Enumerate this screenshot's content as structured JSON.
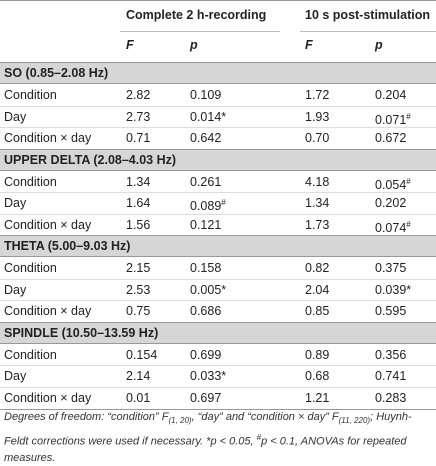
{
  "header": {
    "group1": "Complete 2 h-recording",
    "group2": "10 s post-stimulation",
    "columns": [
      "F",
      "p",
      "F",
      "p"
    ]
  },
  "sections": [
    {
      "title": "SO (0.85–2.08 Hz)",
      "rows": [
        [
          "Condition",
          "2.82",
          "0.109",
          "1.72",
          "0.204"
        ],
        [
          "Day",
          "2.73",
          "0.014*",
          "1.93",
          {
            "text": "0.071",
            "sup": "#"
          }
        ],
        [
          "Condition × day",
          "0.71",
          "0.642",
          "0.70",
          "0.672"
        ]
      ]
    },
    {
      "title": "UPPER DELTA (2.08–4.03 Hz)",
      "rows": [
        [
          "Condition",
          "1.34",
          "0.261",
          "4.18",
          {
            "text": "0.054",
            "sup": "#"
          }
        ],
        [
          "Day",
          "1.64",
          {
            "text": "0.089",
            "sup": "#"
          },
          "1.34",
          "0.202"
        ],
        [
          "Condition × day",
          "1.56",
          "0.121",
          "1.73",
          {
            "text": "0.074",
            "sup": "#"
          }
        ]
      ]
    },
    {
      "title": "THETA (5.00–9.03 Hz)",
      "rows": [
        [
          "Condition",
          "2.15",
          "0.158",
          "0.82",
          "0.375"
        ],
        [
          "Day",
          "2.53",
          "0.005*",
          "2.04",
          "0.039*"
        ],
        [
          "Condition × day",
          "0.75",
          "0.686",
          "0.85",
          "0.595"
        ]
      ]
    },
    {
      "title": "SPINDLE (10.50–13.59 Hz)",
      "rows": [
        [
          "Condition",
          "0.154",
          "0.699",
          "0.89",
          "0.356"
        ],
        [
          "Day",
          "2.14",
          "0.033*",
          "0.68",
          "0.741"
        ],
        [
          "Condition × day",
          "0.01",
          "0.697",
          "1.21",
          "0.283"
        ]
      ]
    }
  ],
  "footnote": [
    "Degrees of freedom: “condition” F",
    "(1, 20)",
    ", “day” and “condition × day” F",
    "(11, 220)",
    "; Huynh-Feldt corrections were used if necessary. *p < 0.05, ",
    "#",
    "p < 0.1, ANOVAs for repeated measures."
  ]
}
